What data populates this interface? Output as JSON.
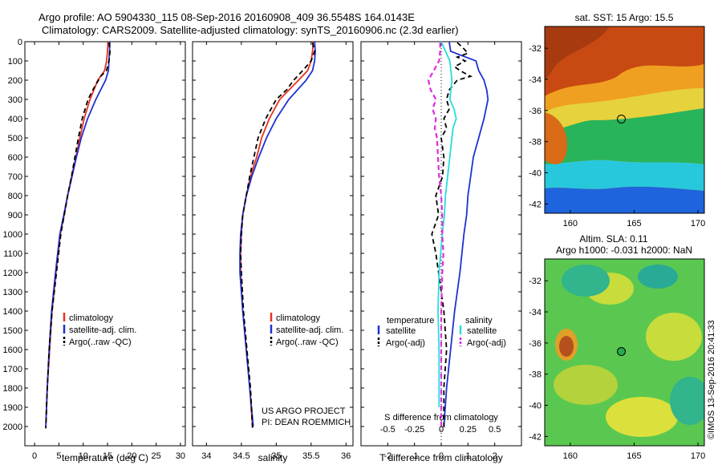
{
  "header": {
    "title_line1": "Argo profile: AO 5904330_115 08-Sep-2016 20160908_409 36.5548S 164.0143E",
    "title_line2": "Climatology: CARS2009. Satellite-adjusted climatology: synTS_20160906.nc (2.3d earlier)"
  },
  "credits": {
    "project": "US ARGO PROJECT",
    "pi": "PI: DEAN ROEMMICH",
    "timestamp": "©IMOS 13-Sep-2016 20:41:33"
  },
  "colors": {
    "climatology": "#e8321e",
    "satellite": "#1e32d2",
    "argo": "#000000",
    "salinity_satellite": "#28dcdc",
    "salinity_argo": "#e028e0"
  },
  "chart_data": [
    {
      "type": "line",
      "panel": "temperature",
      "xlabel": "temperature (deg C)",
      "xlim": [
        -2,
        31
      ],
      "ylim": [
        2100,
        0
      ],
      "xticks": [
        "0",
        "5",
        "10",
        "15",
        "20",
        "25",
        "30"
      ],
      "yticks": [
        "0",
        "100",
        "200",
        "300",
        "400",
        "500",
        "600",
        "700",
        "800",
        "900",
        "1000",
        "1100",
        "1200",
        "1300",
        "1400",
        "1500",
        "1600",
        "1700",
        "1800",
        "1900",
        "2000"
      ],
      "legend": [
        "climatology",
        "satellite-adj. clim.",
        "Argo(..raw -QC)"
      ],
      "series": [
        {
          "name": "climatology",
          "depth": [
            0,
            50,
            100,
            150,
            200,
            300,
            400,
            500,
            600,
            700,
            800,
            900,
            1000,
            1200,
            1400,
            1600,
            1800,
            2000
          ],
          "values": [
            15.1,
            15.0,
            14.8,
            14.4,
            13.0,
            11.4,
            10.2,
            9.3,
            8.5,
            7.6,
            6.8,
            6.1,
            5.3,
            4.4,
            3.6,
            3.1,
            2.6,
            2.3
          ]
        },
        {
          "name": "satellite-adj. clim.",
          "depth": [
            0,
            50,
            100,
            150,
            200,
            300,
            400,
            500,
            600,
            700,
            800,
            900,
            1000,
            1200,
            1400,
            1600,
            1800,
            2000
          ],
          "values": [
            15.5,
            15.4,
            15.3,
            15.2,
            14.6,
            12.6,
            10.9,
            9.6,
            8.6,
            7.7,
            6.8,
            6.0,
            5.2,
            4.3,
            3.5,
            3.0,
            2.6,
            2.3
          ]
        },
        {
          "name": "Argo(..raw -QC)",
          "depth": [
            5,
            50,
            100,
            150,
            180,
            250,
            300,
            400,
            500,
            600,
            700,
            800,
            900,
            1000,
            1200,
            1400,
            1600,
            1800,
            2010
          ],
          "values": [
            15.3,
            15.5,
            15.3,
            14.8,
            13.6,
            12.0,
            11.0,
            9.8,
            9.0,
            8.3,
            7.6,
            6.8,
            6.1,
            5.4,
            4.5,
            3.6,
            3.0,
            2.6,
            2.3
          ]
        }
      ]
    },
    {
      "type": "line",
      "panel": "salinity",
      "xlabel": "salinity",
      "xlim": [
        33.8,
        36.1
      ],
      "ylim": [
        2100,
        0
      ],
      "xticks": [
        "34",
        "34.5",
        "35",
        "35.5",
        "36"
      ],
      "legend": [
        "climatology",
        "satellite-adj. clim.",
        "Argo(..raw -QC)"
      ],
      "series": [
        {
          "name": "climatology",
          "depth": [
            0,
            50,
            100,
            150,
            200,
            300,
            400,
            500,
            600,
            700,
            800,
            900,
            1000,
            1100,
            1200,
            1400,
            1600,
            1800,
            2000
          ],
          "values": [
            35.53,
            35.52,
            35.5,
            35.45,
            35.32,
            35.05,
            34.9,
            34.79,
            34.72,
            34.63,
            34.57,
            34.52,
            34.5,
            34.49,
            34.49,
            34.52,
            34.57,
            34.62,
            34.66
          ]
        },
        {
          "name": "satellite-adj. clim.",
          "depth": [
            0,
            50,
            100,
            150,
            200,
            300,
            400,
            500,
            600,
            700,
            800,
            900,
            1000,
            1100,
            1200,
            1400,
            1600,
            1800,
            2000
          ],
          "values": [
            35.55,
            35.56,
            35.55,
            35.52,
            35.43,
            35.18,
            35.0,
            34.86,
            34.75,
            34.65,
            34.57,
            34.52,
            34.49,
            34.48,
            34.48,
            34.52,
            34.57,
            34.62,
            34.67
          ]
        },
        {
          "name": "Argo(..raw -QC)",
          "depth": [
            5,
            50,
            100,
            150,
            200,
            250,
            300,
            400,
            500,
            600,
            700,
            800,
            900,
            1000,
            1100,
            1200,
            1400,
            1600,
            1800,
            2010
          ],
          "values": [
            35.52,
            35.55,
            35.5,
            35.38,
            35.25,
            35.15,
            35.0,
            34.85,
            34.74,
            34.68,
            34.62,
            34.57,
            34.52,
            34.5,
            34.49,
            34.5,
            34.53,
            34.58,
            34.63,
            34.66
          ]
        }
      ]
    },
    {
      "type": "line",
      "panel": "differences",
      "xlabel_bottom": "T difference from climatology",
      "xlabel_top": "S difference from climatology",
      "xlim_T": [
        -3,
        3
      ],
      "xticks_T": [
        "-2",
        "-1",
        "0",
        "1",
        "2"
      ],
      "xticks_S": [
        "-0.5",
        "-0.25",
        "0",
        "0.25",
        "0.5"
      ],
      "ylim": [
        2100,
        0
      ],
      "legend_temperature_title": "temperature",
      "legend_salinity_title": "salinity",
      "legend_temperature": [
        "satellite",
        "Argo(-adj)"
      ],
      "legend_salinity": [
        "satellite",
        "Argo(-adj)"
      ],
      "series": [
        {
          "name": "T satellite",
          "axis": "T",
          "depth": [
            0,
            50,
            100,
            150,
            200,
            250,
            300,
            400,
            500,
            600,
            700,
            800,
            900,
            1000,
            1200,
            1400,
            1600,
            1800,
            2000
          ],
          "values": [
            0.3,
            0.35,
            1.3,
            1.4,
            1.6,
            1.7,
            1.75,
            1.6,
            1.4,
            1.2,
            1.1,
            1.0,
            0.95,
            0.85,
            0.7,
            0.5,
            0.35,
            0.2,
            0.1
          ]
        },
        {
          "name": "T Argo(-adj)",
          "axis": "T",
          "depth": [
            5,
            30,
            60,
            80,
            100,
            130,
            150,
            180,
            200,
            250,
            300,
            350,
            400,
            450,
            500,
            600,
            700,
            800,
            900,
            1000,
            1100,
            1200,
            1400,
            1600,
            1800,
            2010
          ],
          "values": [
            0.6,
            0.8,
            1.0,
            0.6,
            0.9,
            0.5,
            0.7,
            1.1,
            0.6,
            0.3,
            0.2,
            0.3,
            0.1,
            0.2,
            0.0,
            0.1,
            0.05,
            -0.2,
            -0.1,
            -0.35,
            -0.2,
            -0.1,
            0.1,
            0.2,
            0.1,
            0.1
          ]
        },
        {
          "name": "S satellite",
          "axis": "S",
          "depth": [
            0,
            100,
            200,
            300,
            350,
            400,
            450,
            500,
            600,
            700,
            800,
            900,
            1000,
            1200,
            1400,
            1600,
            1800,
            1900
          ],
          "values": [
            0.0,
            0.08,
            0.1,
            0.08,
            0.12,
            0.14,
            0.11,
            0.1,
            0.08,
            0.06,
            0.04,
            0.03,
            0.01,
            -0.02,
            -0.03,
            -0.02,
            -0.02,
            -0.02
          ]
        },
        {
          "name": "S Argo(-adj)",
          "axis": "S",
          "depth": [
            5,
            50,
            100,
            150,
            200,
            250,
            300,
            350,
            400,
            450,
            500,
            600,
            700,
            800,
            900,
            1000,
            1100,
            1200,
            1400,
            1600,
            1800,
            2010
          ],
          "values": [
            -0.01,
            -0.01,
            -0.02,
            -0.07,
            -0.12,
            -0.1,
            -0.05,
            -0.08,
            -0.05,
            -0.06,
            -0.04,
            -0.03,
            -0.02,
            0.0,
            0.01,
            0.01,
            0.02,
            0.01,
            0.0,
            0.0,
            0.0,
            0.0
          ]
        }
      ]
    }
  ],
  "maps": {
    "sst": {
      "title": "sat. SST: 15 Argo: 15.5",
      "yticks": [
        "-32",
        "-34",
        "-36",
        "-38",
        "-40",
        "-42"
      ],
      "xticks": [
        "160",
        "165",
        "170"
      ],
      "marker": {
        "lon": 164.0,
        "lat": -36.55
      }
    },
    "sla": {
      "title_line1": "Altim. SLA: 0.11",
      "title_line2": "Argo h1000: -0.031 h2000: NaN",
      "yticks": [
        "-32",
        "-34",
        "-36",
        "-38",
        "-40",
        "-42"
      ],
      "xticks": [
        "160",
        "165",
        "170"
      ],
      "marker": {
        "lon": 164.0,
        "lat": -36.55
      }
    }
  }
}
